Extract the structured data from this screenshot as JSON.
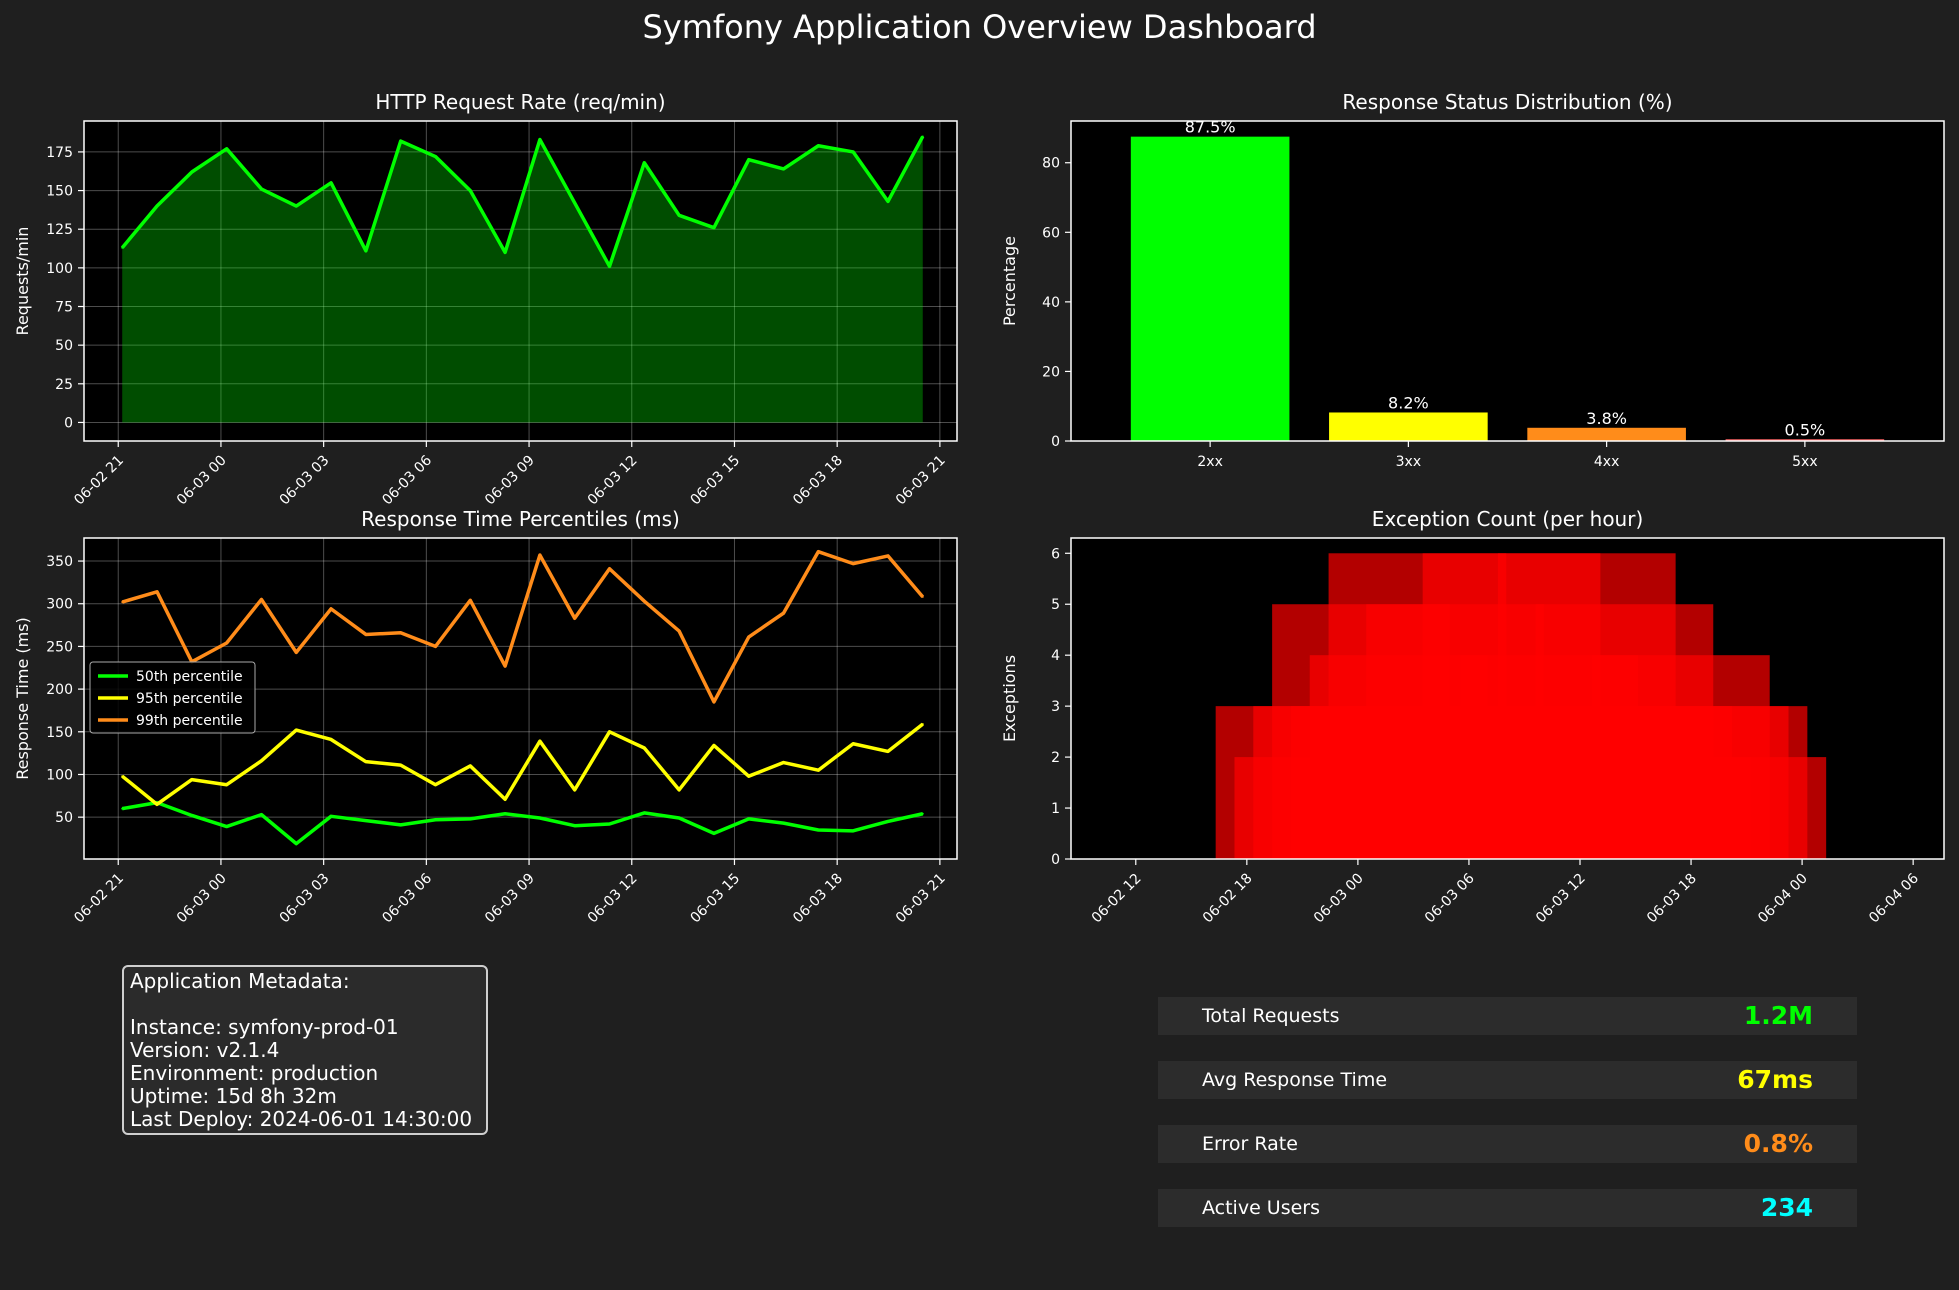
{
  "dashboard": {
    "title": "Symfony Application Overview Dashboard"
  },
  "chart_data": [
    {
      "id": "request-rate",
      "type": "area",
      "title": "HTTP Request Rate (req/min)",
      "xlabel": "",
      "ylabel": "Requests/min",
      "color": "#00ff00",
      "fill": "#004d00",
      "xlim": [
        "2024-06-02T20:00",
        "2024-06-03T21:30"
      ],
      "ylim": [
        -12,
        195
      ],
      "yticks": [
        0,
        25,
        50,
        75,
        100,
        125,
        150,
        175
      ],
      "xticks": [
        "2024-06-02T21:00",
        "2024-06-03T00:00",
        "2024-06-03T03:00",
        "2024-06-03T06:00",
        "2024-06-03T09:00",
        "2024-06-03T12:00",
        "2024-06-03T15:00",
        "2024-06-03T18:00",
        "2024-06-03T21:00"
      ],
      "xtick_labels": [
        "06-02 21",
        "06-03 00",
        "06-03 03",
        "06-03 06",
        "06-03 09",
        "06-03 12",
        "06-03 15",
        "06-03 18",
        "06-03 21"
      ],
      "grid": true,
      "x": [
        "2024-06-02T21:07",
        "2024-06-02T22:08",
        "2024-06-02T23:09",
        "2024-06-03T00:10",
        "2024-06-03T01:11",
        "2024-06-03T02:12",
        "2024-06-03T03:13",
        "2024-06-03T04:14",
        "2024-06-03T05:15",
        "2024-06-03T06:16",
        "2024-06-03T07:17",
        "2024-06-03T08:18",
        "2024-06-03T09:19",
        "2024-06-03T10:20",
        "2024-06-03T11:21",
        "2024-06-03T12:22",
        "2024-06-03T13:23",
        "2024-06-03T14:24",
        "2024-06-03T15:25",
        "2024-06-03T16:26",
        "2024-06-03T17:27",
        "2024-06-03T18:28",
        "2024-06-03T19:29",
        "2024-06-03T20:30"
      ],
      "values": [
        113,
        140,
        162,
        177,
        151,
        140,
        155,
        111,
        182,
        172,
        150,
        110,
        183,
        142,
        101,
        168,
        134,
        126,
        170,
        164,
        179,
        175,
        143,
        185
      ]
    },
    {
      "id": "status-distribution",
      "type": "bar",
      "title": "Response Status Distribution (%)",
      "xlabel": "",
      "ylabel": "Percentage",
      "categories": [
        "2xx",
        "3xx",
        "4xx",
        "5xx"
      ],
      "values": [
        87.5,
        8.2,
        3.8,
        0.5
      ],
      "data_labels": [
        "87.5%",
        "8.2%",
        "3.8%",
        "0.5%"
      ],
      "colors": [
        "#00ff00",
        "#ffff00",
        "#ff8c1a",
        "#ff6666"
      ],
      "ylim": [
        0,
        92
      ],
      "yticks": [
        0,
        20,
        40,
        60,
        80
      ],
      "grid": false
    },
    {
      "id": "response-time",
      "type": "line",
      "title": "Response Time Percentiles (ms)",
      "xlabel": "",
      "ylabel": "Response Time (ms)",
      "xlim": [
        "2024-06-02T20:00",
        "2024-06-03T21:30"
      ],
      "ylim": [
        1,
        377
      ],
      "yticks": [
        50,
        100,
        150,
        200,
        250,
        300,
        350
      ],
      "xticks": [
        "2024-06-02T21:00",
        "2024-06-03T00:00",
        "2024-06-03T03:00",
        "2024-06-03T06:00",
        "2024-06-03T09:00",
        "2024-06-03T12:00",
        "2024-06-03T15:00",
        "2024-06-03T18:00",
        "2024-06-03T21:00"
      ],
      "xtick_labels": [
        "06-02 21",
        "06-03 00",
        "06-03 03",
        "06-03 06",
        "06-03 09",
        "06-03 12",
        "06-03 15",
        "06-03 18",
        "06-03 21"
      ],
      "grid": true,
      "legend": "center-left",
      "x": [
        "2024-06-02T21:07",
        "2024-06-02T22:08",
        "2024-06-02T23:09",
        "2024-06-03T00:10",
        "2024-06-03T01:11",
        "2024-06-03T02:12",
        "2024-06-03T03:13",
        "2024-06-03T04:14",
        "2024-06-03T05:15",
        "2024-06-03T06:16",
        "2024-06-03T07:17",
        "2024-06-03T08:18",
        "2024-06-03T09:19",
        "2024-06-03T10:20",
        "2024-06-03T11:21",
        "2024-06-03T12:22",
        "2024-06-03T13:23",
        "2024-06-03T14:24",
        "2024-06-03T15:25",
        "2024-06-03T16:26",
        "2024-06-03T17:27",
        "2024-06-03T18:28",
        "2024-06-03T19:29",
        "2024-06-03T20:30"
      ],
      "series": [
        {
          "name": "50th percentile",
          "color": "#00ff00",
          "values": [
            60,
            67,
            52,
            39,
            53,
            19,
            51,
            46,
            41,
            47,
            48,
            54,
            49,
            40,
            42,
            55,
            49,
            31,
            48,
            43,
            35,
            34,
            45,
            54
          ]
        },
        {
          "name": "95th percentile",
          "color": "#ffff00",
          "values": [
            98,
            65,
            94,
            88,
            116,
            152,
            141,
            115,
            111,
            88,
            110,
            71,
            139,
            82,
            150,
            131,
            82,
            134,
            98,
            114,
            105,
            136,
            127,
            159
          ]
        },
        {
          "name": "99th percentile",
          "color": "#ff8c1a",
          "values": [
            302,
            314,
            232,
            254,
            305,
            243,
            294,
            264,
            266,
            250,
            304,
            227,
            357,
            283,
            341,
            303,
            268,
            185,
            261,
            289,
            361,
            347,
            356,
            308
          ]
        }
      ]
    },
    {
      "id": "exception-count",
      "type": "bar",
      "title": "Exception Count (per hour)",
      "xlabel": "",
      "ylabel": "Exceptions",
      "color": "#ff0000",
      "ylim": [
        0,
        6.3
      ],
      "yticks": [
        0,
        1,
        2,
        3,
        4,
        5,
        6
      ],
      "xlim": [
        "2024-06-02T08:30",
        "2024-06-04T07:40"
      ],
      "xticks": [
        "2024-06-02T12:00",
        "2024-06-02T18:00",
        "2024-06-03T00:00",
        "2024-06-03T06:00",
        "2024-06-03T12:00",
        "2024-06-03T18:00",
        "2024-06-04T00:00",
        "2024-06-04T06:00"
      ],
      "xtick_labels": [
        "06-02 12",
        "06-02 18",
        "06-03 00",
        "06-03 06",
        "06-03 12",
        "06-03 18",
        "06-04 00",
        "06-04 06"
      ],
      "grid": false,
      "x": [
        "2024-06-02T21:07",
        "2024-06-02T22:08",
        "2024-06-02T23:09",
        "2024-06-03T00:10",
        "2024-06-03T01:11",
        "2024-06-03T02:12",
        "2024-06-03T03:13",
        "2024-06-03T04:14",
        "2024-06-03T05:15",
        "2024-06-03T06:16",
        "2024-06-03T07:17",
        "2024-06-03T08:18",
        "2024-06-03T09:19",
        "2024-06-03T10:20",
        "2024-06-03T11:21",
        "2024-06-03T12:22",
        "2024-06-03T13:23",
        "2024-06-03T14:24",
        "2024-06-03T15:25",
        "2024-06-03T16:26",
        "2024-06-03T17:27",
        "2024-06-03T18:28",
        "2024-06-03T19:29",
        "2024-06-03T20:30"
      ],
      "values": [
        3,
        2,
        3,
        5,
        3,
        4,
        6,
        3,
        5,
        2,
        3,
        6,
        3,
        4,
        2,
        6,
        3,
        5,
        3,
        2,
        4,
        3,
        3,
        2
      ]
    }
  ],
  "metadata": {
    "heading": "Application Metadata:",
    "instance": "Instance: symfony-prod-01",
    "version": "Version: v2.1.4",
    "environment": "Environment: production",
    "uptime": "Uptime: 15d 8h 32m",
    "last_deploy": "Last Deploy: 2024-06-01 14:30:00"
  },
  "kpis": [
    {
      "label": "Total Requests",
      "value": "1.2M",
      "color": "#00ff00"
    },
    {
      "label": "Avg Response Time",
      "value": "67ms",
      "color": "#ffff00"
    },
    {
      "label": "Error Rate",
      "value": "0.8%",
      "color": "#ff8c1a"
    },
    {
      "label": "Active Users",
      "value": "234",
      "color": "#00ffff"
    }
  ]
}
